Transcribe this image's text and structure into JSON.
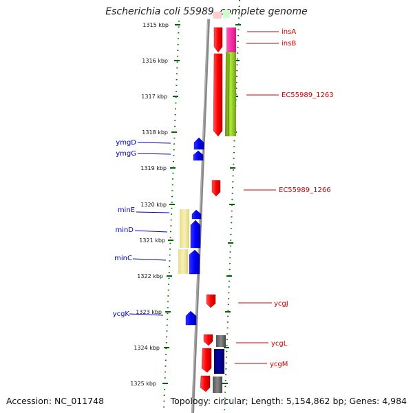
{
  "title": "Escherichia coli 55989, complete genome",
  "footer": {
    "accession": "Accession: NC_011748",
    "summary": "Topology: circular; Length: 5,154,862 bp; Genes: 4,984"
  },
  "scale": {
    "ticks": [
      "1315 kbp",
      "1316 kbp",
      "1317 kbp",
      "1318 kbp",
      "1319 kbp",
      "1320 kbp",
      "1321 kbp",
      "1322 kbp",
      "1323 kbp",
      "1324 kbp",
      "1325 kbp"
    ]
  },
  "genes_right": [
    {
      "label": "insA",
      "color": "#cc0000"
    },
    {
      "label": "insB",
      "color": "#cc0000"
    },
    {
      "label": "EC55989_1263",
      "color": "#cc0000"
    },
    {
      "label": "EC55989_1266",
      "color": "#cc0000"
    },
    {
      "label": "ycgJ",
      "color": "#cc0000"
    },
    {
      "label": "ycgL",
      "color": "#cc0000"
    },
    {
      "label": "ycgM",
      "color": "#cc0000"
    }
  ],
  "genes_left": [
    {
      "label": "ymgD",
      "color": "#0000cc"
    },
    {
      "label": "ymgG",
      "color": "#0000cc"
    },
    {
      "label": "minE",
      "color": "#0000cc"
    },
    {
      "label": "minD",
      "color": "#0000cc"
    },
    {
      "label": "minC",
      "color": "#0000cc"
    },
    {
      "label": "ycgK",
      "color": "#0000cc"
    }
  ],
  "colors": {
    "forward_gene": "#ff0000",
    "reverse_gene": "#0000ff",
    "pseudo_pink": "#ff33aa",
    "pseudo_green": "#99dd22",
    "cog_yellow": "#f2e9a0",
    "cog_gray": "#666666",
    "cog_navy": "#000088",
    "backbone": "#888888",
    "dots": "#006600"
  }
}
